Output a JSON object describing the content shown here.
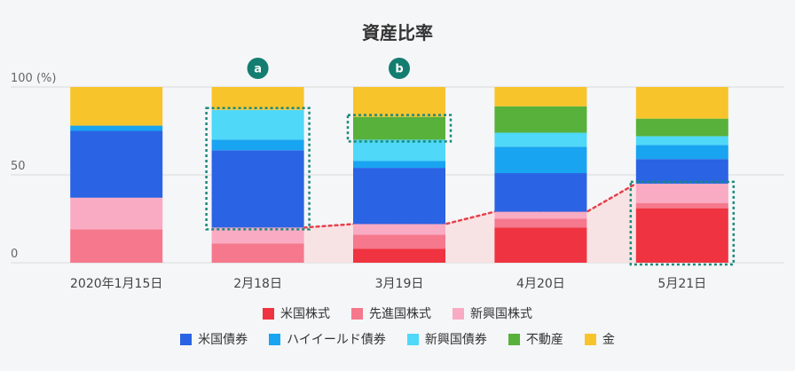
{
  "chart_data": {
    "type": "bar",
    "stacked": true,
    "title": "資産比率",
    "categories": [
      "2020年1月15日",
      "2月18日",
      "3月19日",
      "4月20日",
      "5月21日"
    ],
    "ylim": [
      0,
      100
    ],
    "yticks": [
      {
        "value": 0,
        "label": "0"
      },
      {
        "value": 50,
        "label": "50"
      },
      {
        "value": 100,
        "label": "100 (%)"
      }
    ],
    "grid": true,
    "legend": "bottom",
    "series": [
      {
        "name": "米国株式",
        "color": "#f03340",
        "values": [
          0,
          0,
          8,
          20,
          31
        ]
      },
      {
        "name": "先進国株式",
        "color": "#f5788d",
        "values": [
          19,
          11,
          8,
          5,
          3
        ]
      },
      {
        "name": "新興国株式",
        "color": "#f9abc3",
        "values": [
          18,
          9,
          6,
          4,
          11
        ]
      },
      {
        "name": "米国債券",
        "color": "#2a63e4",
        "values": [
          38,
          44,
          32,
          22,
          14
        ]
      },
      {
        "name": "ハイイールド債券",
        "color": "#18a4f1",
        "values": [
          3,
          6,
          4,
          15,
          8
        ]
      },
      {
        "name": "新興国債券",
        "color": "#4fd8f8",
        "values": [
          0,
          17,
          12,
          8,
          5
        ]
      },
      {
        "name": "不動産",
        "color": "#58b13b",
        "values": [
          0,
          0,
          13,
          15,
          10
        ]
      },
      {
        "name": "金",
        "color": "#f8c42c",
        "values": [
          22,
          13,
          17,
          11,
          18
        ]
      }
    ],
    "annotations": {
      "markers": [
        {
          "label": "a",
          "category": "2月18日"
        },
        {
          "label": "b",
          "category": "3月19日"
        }
      ],
      "highlight_boxes": [
        {
          "category": "2月18日",
          "from": 20,
          "to": 87
        },
        {
          "category": "3月19日",
          "from": 70,
          "to": 83
        },
        {
          "category": "5月21日",
          "from": 0,
          "to": 45
        }
      ],
      "stock_trend_line": {
        "series": [
          "米国株式",
          "先進国株式",
          "新興国株式"
        ],
        "from_category": "2月18日",
        "to_category": "5月21日"
      }
    },
    "colors": {
      "annotation": "#137d70",
      "highlight_box": "#1b8a7b",
      "trend_line": "#e5414c",
      "trend_area": "#f8dfe1",
      "gridline": "#d9d9d9",
      "background": "#f5f6f8"
    }
  }
}
